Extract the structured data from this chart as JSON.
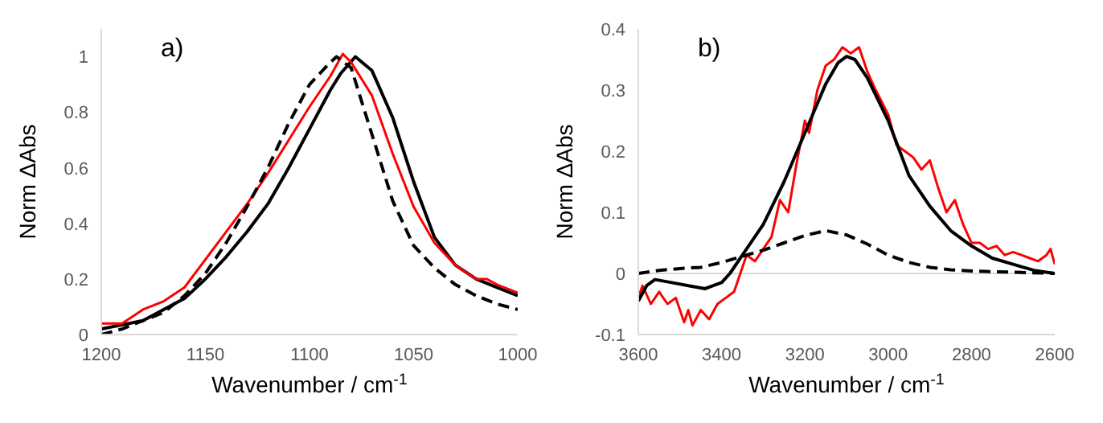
{
  "chart_data": [
    {
      "type": "line",
      "xlabel": "Wavenumber / cm$^{-1}$",
      "ylabel": "Norm ΔAbs",
      "annotations": [
        "a)"
      ],
      "xlim": [
        1200,
        1000
      ],
      "xticks": [
        1200,
        1150,
        1100,
        1050,
        1000
      ],
      "ylim": [
        0,
        1.1
      ],
      "yticks": [
        0,
        0.2,
        0.4,
        0.6,
        0.8,
        1
      ],
      "series": [
        {
          "color": "#000000",
          "line_style": "solid",
          "x": [
            1200,
            1180,
            1160,
            1150,
            1140,
            1130,
            1120,
            1110,
            1100,
            1090,
            1085,
            1078,
            1070,
            1060,
            1050,
            1040,
            1030,
            1020,
            1010,
            1000
          ],
          "values": [
            0.02,
            0.05,
            0.13,
            0.2,
            0.28,
            0.37,
            0.47,
            0.6,
            0.74,
            0.88,
            0.94,
            1.0,
            0.95,
            0.78,
            0.55,
            0.35,
            0.25,
            0.2,
            0.17,
            0.14
          ]
        },
        {
          "color": "#ff0000",
          "line_style": "solid",
          "x": [
            1200,
            1190,
            1180,
            1170,
            1160,
            1150,
            1140,
            1130,
            1120,
            1110,
            1100,
            1090,
            1084,
            1080,
            1070,
            1060,
            1050,
            1040,
            1030,
            1020,
            1015,
            1010,
            1000
          ],
          "values": [
            0.04,
            0.04,
            0.09,
            0.12,
            0.17,
            0.27,
            0.37,
            0.47,
            0.58,
            0.7,
            0.82,
            0.93,
            1.01,
            0.98,
            0.86,
            0.65,
            0.46,
            0.33,
            0.25,
            0.2,
            0.2,
            0.18,
            0.15
          ]
        },
        {
          "color": "#000000",
          "line_style": "dashed",
          "x": [
            1200,
            1190,
            1180,
            1170,
            1160,
            1150,
            1140,
            1130,
            1120,
            1110,
            1100,
            1090,
            1087,
            1080,
            1070,
            1060,
            1050,
            1040,
            1030,
            1020,
            1010,
            1000
          ],
          "values": [
            0.0,
            0.02,
            0.05,
            0.08,
            0.14,
            0.22,
            0.33,
            0.46,
            0.6,
            0.76,
            0.9,
            0.98,
            1.0,
            0.96,
            0.72,
            0.48,
            0.32,
            0.24,
            0.18,
            0.14,
            0.11,
            0.09
          ]
        }
      ]
    },
    {
      "type": "line",
      "xlabel": "Wavenumber / cm$^{-1}$",
      "ylabel": "Norm ΔAbs",
      "annotations": [
        "b)"
      ],
      "xlim": [
        3600,
        2600
      ],
      "xticks": [
        3600,
        3400,
        3200,
        3000,
        2800,
        2600
      ],
      "ylim": [
        -0.1,
        0.4
      ],
      "yticks": [
        -0.1,
        0,
        0.1,
        0.2,
        0.3,
        0.4
      ],
      "ref_lines": [
        {
          "axis": "y",
          "value": 0,
          "color": "#d9d9d9"
        }
      ],
      "series": [
        {
          "color": "#ff0000",
          "line_style": "solid",
          "x": [
            3600,
            3590,
            3570,
            3550,
            3530,
            3510,
            3490,
            3480,
            3470,
            3450,
            3430,
            3410,
            3390,
            3370,
            3360,
            3340,
            3320,
            3300,
            3280,
            3260,
            3240,
            3220,
            3200,
            3190,
            3170,
            3150,
            3130,
            3110,
            3090,
            3070,
            3050,
            3030,
            3000,
            2980,
            2960,
            2940,
            2920,
            2900,
            2880,
            2860,
            2840,
            2820,
            2800,
            2780,
            2760,
            2740,
            2720,
            2700,
            2680,
            2660,
            2640,
            2620,
            2610,
            2600
          ],
          "values": [
            -0.04,
            -0.02,
            -0.05,
            -0.03,
            -0.05,
            -0.04,
            -0.08,
            -0.06,
            -0.085,
            -0.06,
            -0.075,
            -0.05,
            -0.04,
            -0.03,
            -0.01,
            0.03,
            0.02,
            0.04,
            0.06,
            0.12,
            0.1,
            0.18,
            0.25,
            0.23,
            0.3,
            0.34,
            0.35,
            0.37,
            0.36,
            0.37,
            0.33,
            0.3,
            0.26,
            0.21,
            0.2,
            0.19,
            0.17,
            0.185,
            0.14,
            0.1,
            0.12,
            0.08,
            0.05,
            0.05,
            0.04,
            0.045,
            0.03,
            0.035,
            0.03,
            0.025,
            0.02,
            0.03,
            0.04,
            0.015
          ]
        },
        {
          "color": "#000000",
          "line_style": "solid",
          "x": [
            3600,
            3580,
            3560,
            3520,
            3480,
            3440,
            3420,
            3400,
            3380,
            3350,
            3300,
            3250,
            3200,
            3150,
            3120,
            3100,
            3080,
            3050,
            3000,
            2950,
            2900,
            2850,
            2800,
            2750,
            2700,
            2650,
            2600
          ],
          "values": [
            -0.045,
            -0.02,
            -0.01,
            -0.015,
            -0.02,
            -0.025,
            -0.02,
            -0.015,
            0.0,
            0.03,
            0.08,
            0.15,
            0.23,
            0.31,
            0.345,
            0.355,
            0.35,
            0.32,
            0.25,
            0.16,
            0.11,
            0.07,
            0.045,
            0.025,
            0.015,
            0.005,
            0.0
          ]
        },
        {
          "color": "#000000",
          "line_style": "dashed",
          "x": [
            3600,
            3550,
            3500,
            3450,
            3400,
            3350,
            3300,
            3250,
            3200,
            3150,
            3100,
            3050,
            3000,
            2950,
            2900,
            2850,
            2800,
            2700,
            2600
          ],
          "values": [
            0.0,
            0.005,
            0.008,
            0.01,
            0.018,
            0.028,
            0.038,
            0.05,
            0.062,
            0.07,
            0.063,
            0.048,
            0.03,
            0.018,
            0.01,
            0.006,
            0.004,
            0.002,
            0.0
          ]
        }
      ]
    }
  ]
}
